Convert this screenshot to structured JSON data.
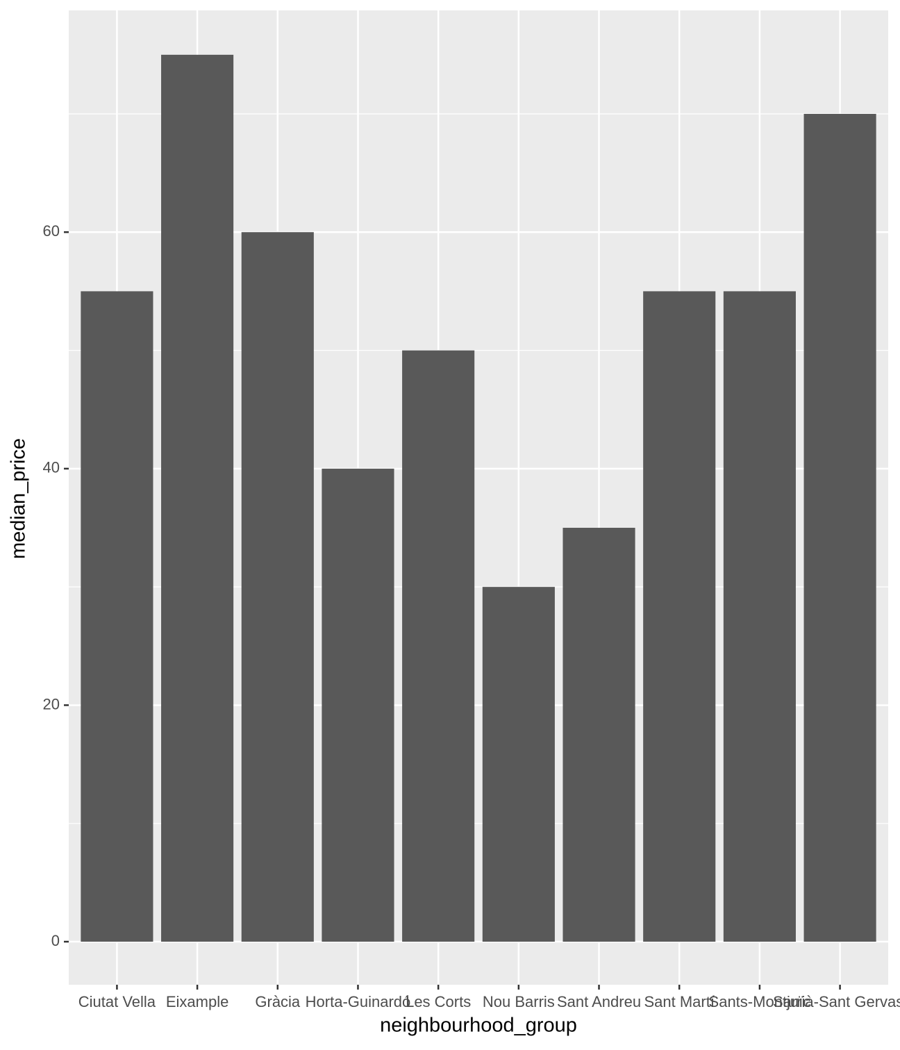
{
  "chart_data": {
    "type": "bar",
    "x_label": "neighbourhood_group",
    "y_label": "median_price",
    "categories": [
      "Ciutat Vella",
      "Eixample",
      "Gràcia",
      "Horta-Guinardó",
      "Les Corts",
      "Nou Barris",
      "Sant Andreu",
      "Sant Martí",
      "Sants-Montjuïc",
      "Sarrià-Sant Gervasi"
    ],
    "values": [
      55,
      75,
      60,
      40,
      50,
      30,
      35,
      55,
      55,
      70
    ],
    "color": "#595959",
    "ylim": [
      -3.64,
      78.75
    ],
    "yticks": [
      0,
      20,
      40,
      60
    ],
    "grid": true,
    "minor_grid": true
  }
}
